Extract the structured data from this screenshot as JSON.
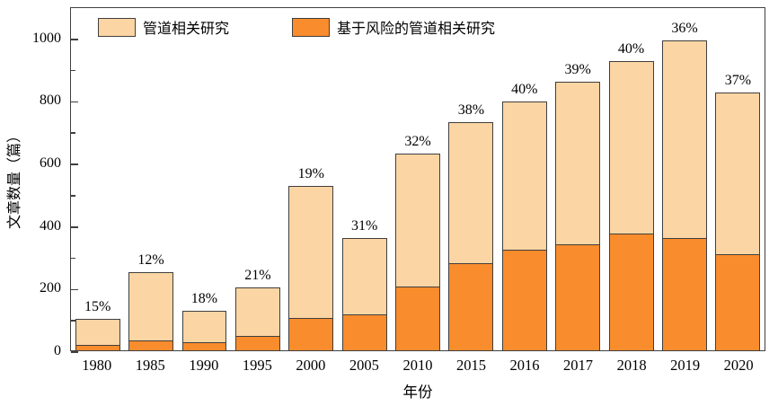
{
  "chart_data": {
    "type": "bar",
    "stacked": true,
    "stack_note": "series[0] values are total bar heights; series[1] values are the bottom (dark orange) segment",
    "title": "",
    "xlabel": "年份",
    "ylabel": "文章数量（篇）",
    "ylim": [
      0,
      1100
    ],
    "yticks": [
      0,
      200,
      400,
      600,
      800,
      1000
    ],
    "minor_ytick_step": 100,
    "grid": false,
    "legend_position": "top-left-inside",
    "categories": [
      "1980",
      "1985",
      "1990",
      "1995",
      "2000",
      "2005",
      "2010",
      "2015",
      "2016",
      "2017",
      "2018",
      "2019",
      "2020"
    ],
    "series": [
      {
        "name": "管道相关研究",
        "color": "#FBD5A3",
        "values": [
          100,
          250,
          125,
          200,
          525,
          360,
          630,
          730,
          795,
          860,
          925,
          990,
          825
        ]
      },
      {
        "name": "基于风险的管道相关研究",
        "color": "#F98C2C",
        "values": [
          15,
          30,
          22,
          42,
          100,
          111,
          202,
          277,
          318,
          335,
          370,
          356,
          305
        ]
      }
    ],
    "bar_labels": [
      "15%",
      "12%",
      "18%",
      "21%",
      "19%",
      "31%",
      "32%",
      "38%",
      "40%",
      "39%",
      "40%",
      "36%",
      "37%"
    ],
    "bar_border_color": "#3f3f3f",
    "axis_color": "#3f3f3f",
    "label_color": "#000000"
  }
}
